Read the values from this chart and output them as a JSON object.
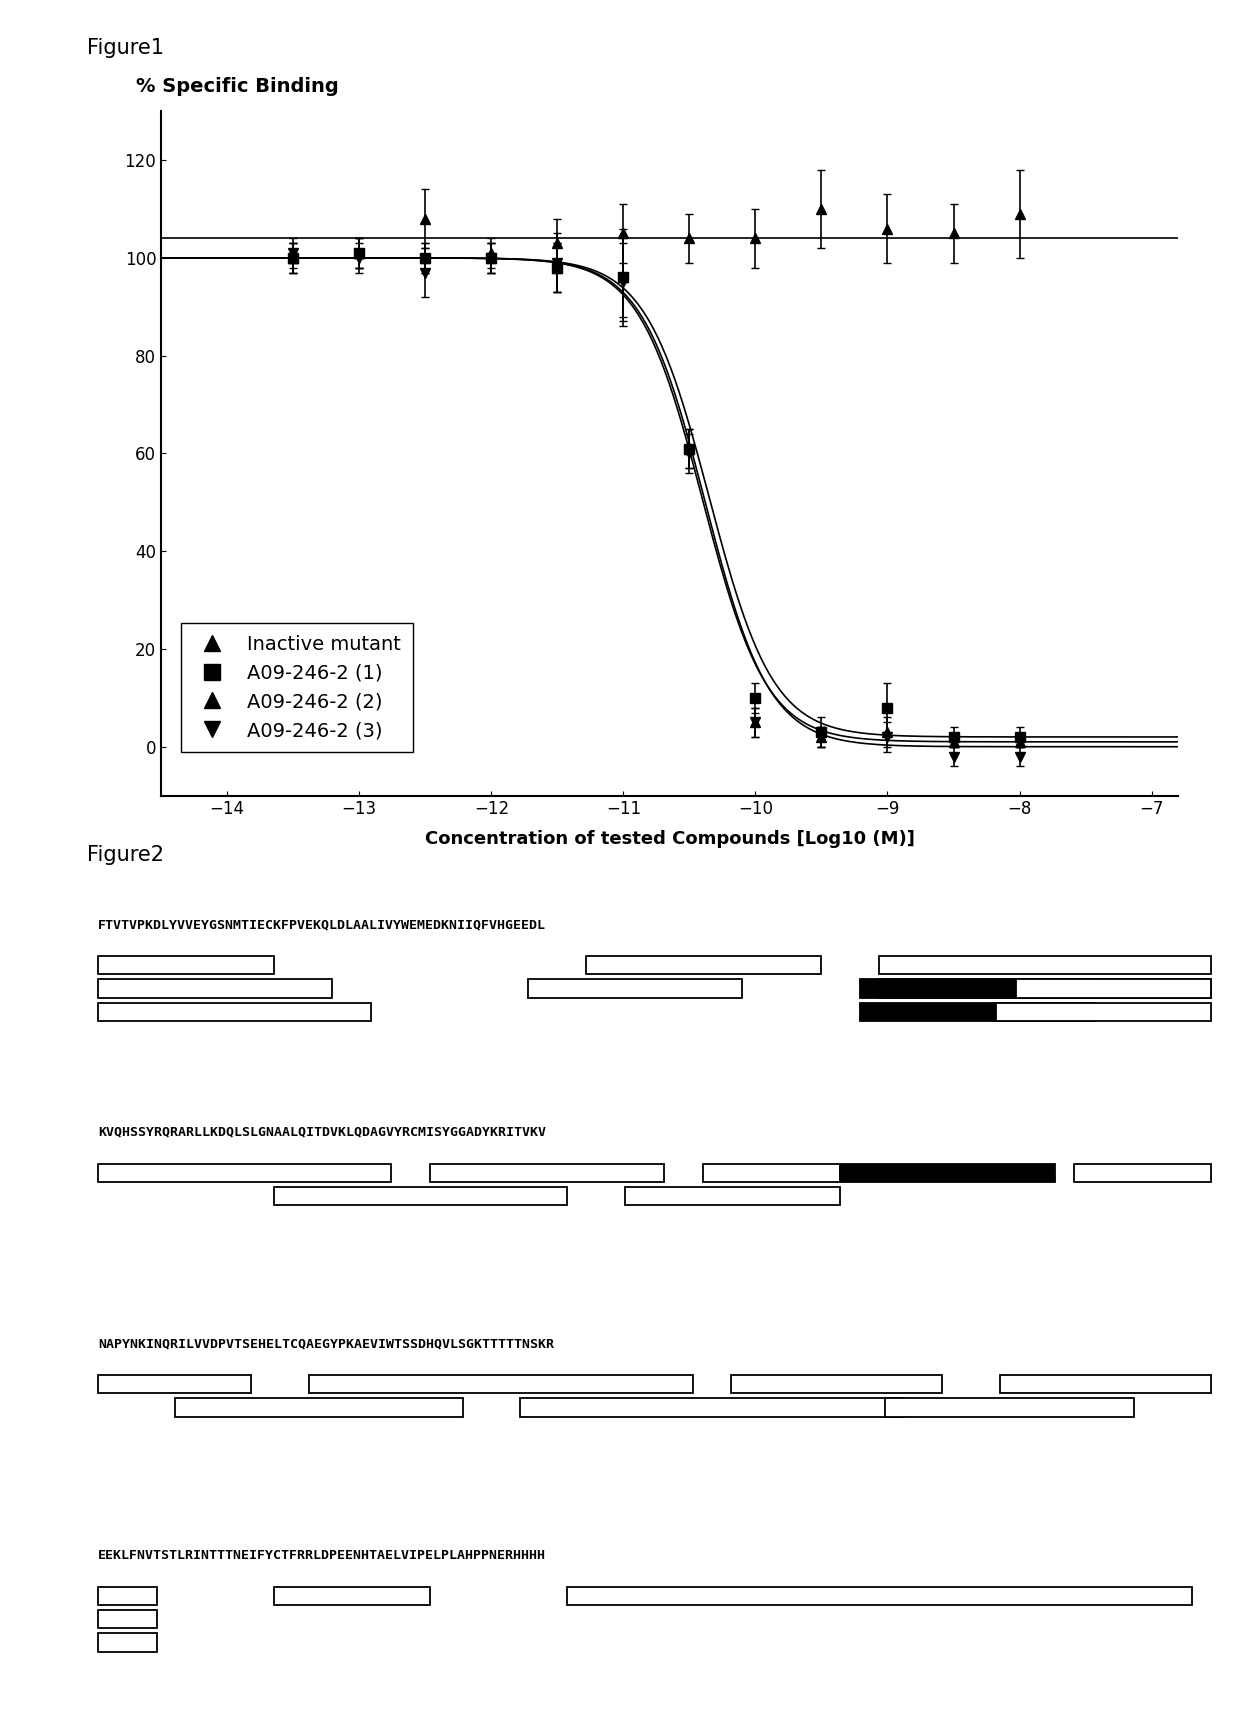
{
  "fig1_title": "Figure1",
  "fig1_ylabel_above": "% Specific Binding",
  "fig1_xlabel": "Concentration of tested Compounds [Log10 (M)]",
  "fig1_xlim": [
    -14.5,
    -6.8
  ],
  "fig1_ylim": [
    -10,
    130
  ],
  "fig1_xticks": [
    -14,
    -13,
    -12,
    -11,
    -10,
    -9,
    -8,
    -7
  ],
  "fig1_yticks": [
    0,
    20,
    40,
    60,
    80,
    100,
    120
  ],
  "inactive_x": [
    -13.5,
    -13.0,
    -12.5,
    -12.0,
    -11.5,
    -11.0,
    -10.5,
    -10.0,
    -9.5,
    -9.0,
    -8.5,
    -8.0
  ],
  "inactive_y": [
    100,
    101,
    108,
    101,
    103,
    105,
    104,
    104,
    110,
    106,
    105,
    109
  ],
  "inactive_err": [
    3,
    3,
    6,
    3,
    5,
    6,
    5,
    6,
    8,
    7,
    6,
    9
  ],
  "series1_x": [
    -13.5,
    -13.0,
    -12.5,
    -12.0,
    -11.5,
    -11.0,
    -10.5,
    -10.0,
    -9.5,
    -9.0,
    -8.5,
    -8.0
  ],
  "series1_y": [
    100,
    101,
    100,
    100,
    98,
    96,
    61,
    10,
    3,
    8,
    2,
    2
  ],
  "series1_err": [
    3,
    3,
    3,
    3,
    5,
    10,
    4,
    3,
    3,
    5,
    2,
    2
  ],
  "series2_x": [
    -13.5,
    -13.0,
    -12.5,
    -12.0,
    -11.5,
    -11.0,
    -10.5,
    -10.0,
    -9.5,
    -9.0,
    -8.5,
    -8.0
  ],
  "series2_y": [
    100,
    101,
    100,
    100,
    98,
    96,
    61,
    5,
    2,
    3,
    1,
    1
  ],
  "series2_err": [
    3,
    3,
    3,
    3,
    5,
    8,
    4,
    3,
    2,
    3,
    1,
    1
  ],
  "series3_x": [
    -13.5,
    -13.0,
    -12.5,
    -12.0,
    -11.5,
    -11.0,
    -10.5,
    -10.0,
    -9.5,
    -9.0,
    -8.5,
    -8.0
  ],
  "series3_y": [
    101,
    100,
    97,
    100,
    99,
    95,
    60,
    5,
    2,
    2,
    -2,
    -2
  ],
  "series3_err": [
    3,
    3,
    5,
    3,
    6,
    8,
    4,
    3,
    2,
    3,
    2,
    2
  ],
  "ec50_1": -10.35,
  "ec50_2": -10.4,
  "ec50_3": -10.38,
  "hill": 1.8,
  "fig2_title": "Figure2",
  "row1_seq": "FTVTVPKDLYVVEYGSNMTIECKFPVEKQLDLAALIVYWEMEDKNIIQFVHGEEDL",
  "row2_seq": "KVQHSSYRQRARLLKDQLSLGNAALQITDVKLQDAGVYRCMISYGGADYKRITVKV",
  "row3_seq": "NAPYNKINQRILVVDPVTSEHELTCQAEGYPKAEVIWTSSDHQVLSGKTTTTTNSKR",
  "row4_seq": "EEKLFNVTSTLRINTTTNEIFYCTFRRLDPEENHTAELVIPELPLAHPPNERHHHH",
  "bg_color": "#ffffff"
}
